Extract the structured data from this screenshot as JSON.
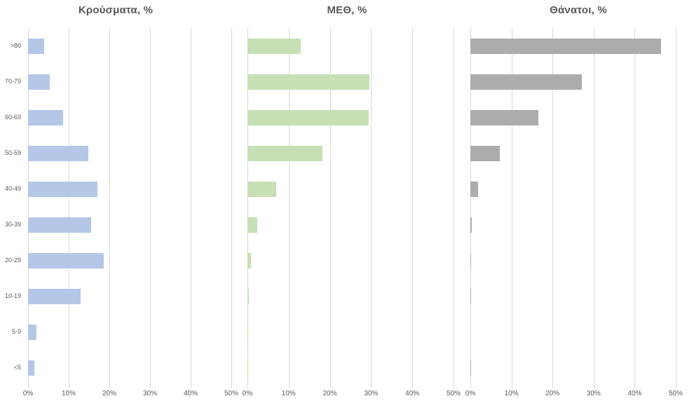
{
  "page": {
    "background": "#ffffff"
  },
  "styles": {
    "gridline_color": "#d9d9d9",
    "axis_text_color": "#595959",
    "title_color": "#595959"
  },
  "chart_data": [
    {
      "type": "bar",
      "orientation": "horizontal",
      "title": "Κρούσματα, %",
      "categories": [
        ">80",
        "70-79",
        "60-69",
        "50-59",
        "40-49",
        "30-39",
        "20-29",
        "10-19",
        "5-9",
        "<5"
      ],
      "values": [
        4.0,
        5.3,
        8.7,
        14.8,
        17.1,
        15.5,
        18.6,
        12.9,
        2.1,
        1.5
      ],
      "xlim": [
        0,
        50
      ],
      "x_ticks": [
        "0%",
        "10%",
        "20%",
        "30%",
        "40%",
        "50%"
      ],
      "bar_color": "#b4c7e7",
      "grid": true,
      "legend": "none",
      "show_category_labels": true
    },
    {
      "type": "bar",
      "orientation": "horizontal",
      "title": "ΜΕΘ, %",
      "categories": [
        ">80",
        "70-79",
        "60-69",
        "50-59",
        "40-49",
        "30-39",
        "20-29",
        "10-19",
        "5-9",
        "<5"
      ],
      "values": [
        13.0,
        29.6,
        29.4,
        18.2,
        6.9,
        2.3,
        0.8,
        0.3,
        0.1,
        0.2
      ],
      "xlim": [
        0,
        50
      ],
      "x_ticks": [
        "0%",
        "10%",
        "20%",
        "30%",
        "40%",
        "50%"
      ],
      "bar_color": "#c6e0b4",
      "grid": true,
      "legend": "none",
      "show_category_labels": false
    },
    {
      "type": "bar",
      "orientation": "horizontal",
      "title": "Θάνατοι, %",
      "categories": [
        ">80",
        "70-79",
        "60-69",
        "50-59",
        "40-49",
        "30-39",
        "20-29",
        "10-19",
        "5-9",
        "<5"
      ],
      "values": [
        46.5,
        27.2,
        16.5,
        7.2,
        1.8,
        0.4,
        0.2,
        0.2,
        0,
        0.2
      ],
      "xlim": [
        0,
        50
      ],
      "x_ticks": [
        "0%",
        "10%",
        "20%",
        "30%",
        "40%",
        "50%"
      ],
      "bar_color": "#aeabab",
      "grid": true,
      "legend": "none",
      "show_category_labels": false
    }
  ]
}
